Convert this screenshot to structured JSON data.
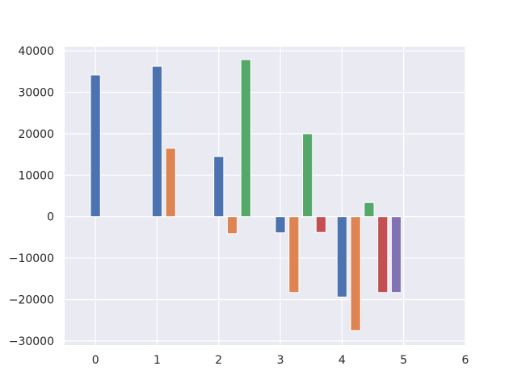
{
  "chart_data": {
    "type": "bar",
    "title": "",
    "xlabel": "",
    "ylabel": "",
    "xlim": [
      -0.5,
      6
    ],
    "ylim": [
      -31000,
      41000
    ],
    "xticks": [
      0,
      1,
      2,
      3,
      4,
      5,
      6
    ],
    "yticks": [
      -30000,
      -20000,
      -10000,
      0,
      10000,
      20000,
      30000,
      40000
    ],
    "grid": true,
    "legend": "none",
    "background": "#EAEAF2",
    "bar_width": 0.16,
    "bars": [
      {
        "x": 0.0,
        "value": 34200,
        "color": "#4C72B0"
      },
      {
        "x": 1.0,
        "value": 36300,
        "color": "#4C72B0"
      },
      {
        "x": 1.22,
        "value": 16500,
        "color": "#DD8452"
      },
      {
        "x": 2.0,
        "value": 14500,
        "color": "#4C72B0"
      },
      {
        "x": 2.22,
        "value": -4100,
        "color": "#DD8452"
      },
      {
        "x": 2.44,
        "value": 37900,
        "color": "#55A868"
      },
      {
        "x": 3.0,
        "value": -3900,
        "color": "#4C72B0"
      },
      {
        "x": 3.22,
        "value": -18300,
        "color": "#DD8452"
      },
      {
        "x": 3.44,
        "value": 20000,
        "color": "#55A868"
      },
      {
        "x": 3.66,
        "value": -3800,
        "color": "#C44E52"
      },
      {
        "x": 4.0,
        "value": -19400,
        "color": "#4C72B0"
      },
      {
        "x": 4.22,
        "value": -27500,
        "color": "#DD8452"
      },
      {
        "x": 4.44,
        "value": 3400,
        "color": "#55A868"
      },
      {
        "x": 4.66,
        "value": -18300,
        "color": "#C44E52"
      },
      {
        "x": 4.88,
        "value": -18300,
        "color": "#8172B3"
      }
    ]
  }
}
